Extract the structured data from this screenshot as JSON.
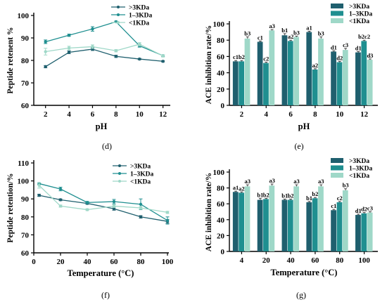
{
  "chart_data": [
    {
      "id": "d",
      "type": "line",
      "panel_label": "(d)",
      "xlabel": "pH",
      "ylabel": "Peptide retenent %",
      "x": [
        2,
        4,
        6,
        8,
        10,
        12
      ],
      "xlim": [
        1,
        12.5
      ],
      "ylim": [
        60,
        100
      ],
      "xticks": [
        2,
        4,
        6,
        8,
        10,
        12
      ],
      "yticks": [
        60,
        70,
        80,
        90,
        100
      ],
      "grid": false,
      "legend_position": "top-right",
      "series": [
        {
          "name": ">3KDa",
          "color": "#1f5f6e",
          "values": [
            77.2,
            83.6,
            85.0,
            81.8,
            80.6,
            79.6
          ],
          "errors": [
            0.5,
            0.6,
            0.6,
            0.5,
            0.3,
            0.3
          ]
        },
        {
          "name": "1–3KDa",
          "color": "#1f8f90",
          "values": [
            88.3,
            91.2,
            94.0,
            97.2,
            86.5,
            82.1
          ],
          "errors": [
            0.8,
            0.5,
            1.0,
            0.3,
            0.6,
            0.4
          ]
        },
        {
          "name": "<1KDa",
          "color": "#9fd8c8",
          "values": [
            83.9,
            85.5,
            86.1,
            84.3,
            87.2,
            82.0
          ],
          "errors": [
            1.5,
            0.8,
            0.8,
            0.5,
            0.7,
            0.5
          ]
        }
      ]
    },
    {
      "id": "e",
      "type": "bar",
      "panel_label": "(e)",
      "xlabel": "pH",
      "ylabel": "ACE inhibition rate/%",
      "categories": [
        "2",
        "4",
        "6",
        "8",
        "10",
        "12"
      ],
      "ylim": [
        0,
        100
      ],
      "yticks": [
        0,
        20,
        40,
        60,
        80,
        100
      ],
      "grid": false,
      "legend_position": "top-right",
      "series": [
        {
          "name": ">3KDa",
          "color": "#1f5f6e",
          "values": [
            54,
            78,
            86,
            90,
            66,
            65
          ],
          "errors": [
            1,
            1,
            2,
            1,
            1,
            1
          ],
          "labels": [
            "c1",
            "c1",
            "b1",
            "a1",
            "d1",
            "d1"
          ]
        },
        {
          "name": "1–3KDa",
          "color": "#1f8f90",
          "values": [
            54,
            52,
            79,
            44,
            53,
            79
          ],
          "errors": [
            1,
            1,
            1,
            1,
            1,
            1
          ],
          "labels": [
            "b2",
            "c2",
            "a2",
            "a2",
            "d2",
            "b2c2"
          ]
        },
        {
          "name": "<1KDa",
          "color": "#9fd8c8",
          "values": [
            82,
            92,
            84,
            82,
            68,
            56
          ],
          "errors": [
            2,
            1,
            1,
            2,
            2,
            1
          ],
          "labels": [
            "b3",
            "a3",
            "b3",
            "b3",
            "c3",
            "d3"
          ]
        }
      ]
    },
    {
      "id": "f",
      "type": "line",
      "panel_label": "(f)",
      "xlabel": "Temperature (°C)",
      "ylabel": "Peptide retention/%",
      "x": [
        4,
        20,
        40,
        60,
        80,
        100
      ],
      "xlim": [
        0,
        100
      ],
      "ylim": [
        60,
        110
      ],
      "xticks": [
        0,
        20,
        40,
        60,
        80,
        100
      ],
      "yticks": [
        60,
        70,
        80,
        90,
        100,
        110
      ],
      "grid": false,
      "legend_position": "top-right",
      "series": [
        {
          "name": ">3KDa",
          "color": "#1f5f6e",
          "values": [
            92.0,
            89.5,
            87.5,
            84.5,
            80.0,
            77.5
          ],
          "errors": [
            0.6,
            0.5,
            0.5,
            0.8,
            0.7,
            1.0
          ]
        },
        {
          "name": "1–3KDa",
          "color": "#1f8f90",
          "values": [
            98.5,
            95.5,
            88.0,
            88.5,
            87.0,
            78.0
          ],
          "errors": [
            0.5,
            1.0,
            0.6,
            1.2,
            3.0,
            2.0
          ]
        },
        {
          "name": "<1KDa",
          "color": "#9fd8c8",
          "values": [
            97.5,
            86.0,
            84.0,
            86.0,
            85.0,
            82.5
          ],
          "errors": [
            1.5,
            0.6,
            0.5,
            0.8,
            0.8,
            0.6
          ]
        }
      ]
    },
    {
      "id": "g",
      "type": "bar",
      "panel_label": "(g)",
      "xlabel": "Temperature (°C)",
      "ylabel": "ACE inhibition rate/%",
      "categories": [
        "4",
        "20",
        "40",
        "60",
        "80",
        "100"
      ],
      "ylim": [
        0,
        100
      ],
      "yticks": [
        0,
        20,
        40,
        60,
        80,
        100
      ],
      "grid": false,
      "legend_position": "top-right",
      "series": [
        {
          "name": ">3KDa",
          "color": "#1f5f6e",
          "values": [
            75,
            65,
            65,
            62,
            52,
            46
          ],
          "errors": [
            1,
            2,
            1,
            1,
            1,
            1
          ],
          "labels": [
            "a1",
            "b1",
            "b1",
            "b1",
            "c1",
            "d1"
          ]
        },
        {
          "name": "1–3KDa",
          "color": "#1f8f90",
          "values": [
            74,
            66,
            65,
            67,
            62,
            48
          ],
          "errors": [
            1,
            1,
            1,
            1,
            1,
            1
          ],
          "labels": [
            "a2",
            "b2",
            "b2",
            "b2",
            "c2",
            "d2"
          ]
        },
        {
          "name": "<1KDa",
          "color": "#9fd8c8",
          "values": [
            82,
            83,
            82,
            82,
            77,
            49
          ],
          "errors": [
            2,
            2,
            2,
            2,
            2,
            1
          ],
          "labels": [
            "a3",
            "a3",
            "a3",
            "a3",
            "b3",
            "c3"
          ]
        }
      ]
    }
  ]
}
